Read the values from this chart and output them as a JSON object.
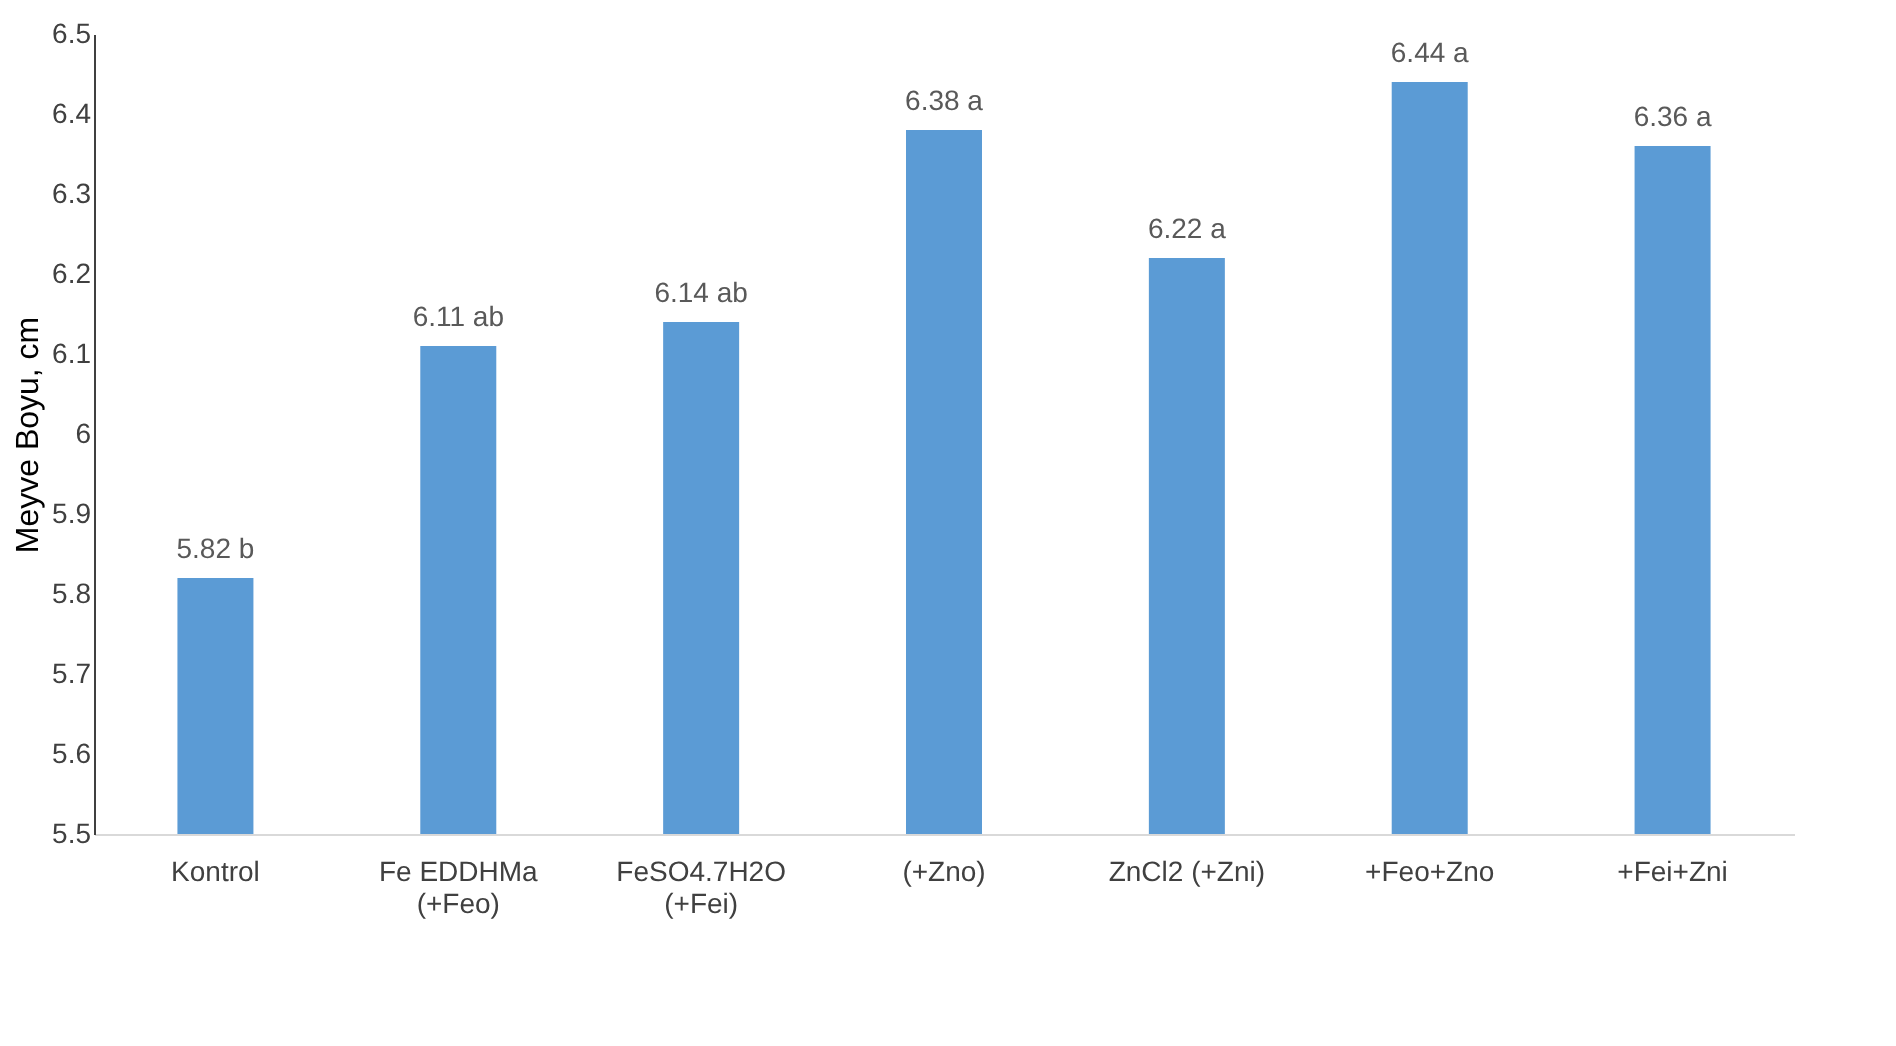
{
  "chart_data": {
    "type": "bar",
    "ylabel": "Meyve Boyu, cm",
    "categories": [
      "Kontrol",
      "Fe EDDHMa\n(+Feo)",
      "FeSO4.7H2O\n(+Fei)",
      "(+Zno)",
      "ZnCl2 (+Zni)",
      "+Feo+Zno",
      "+Fei+Zni"
    ],
    "values": [
      5.82,
      6.11,
      6.14,
      6.38,
      6.22,
      6.44,
      6.36
    ],
    "value_labels": [
      "5.82 b",
      "6.11 ab",
      "6.14 ab",
      "6.38 a",
      "6.22 a",
      "6.44 a",
      "6.36 a"
    ],
    "color": "#5b9bd5",
    "ylim": [
      5.5,
      6.5
    ],
    "yticks": [
      5.5,
      5.6,
      5.7,
      5.8,
      5.9,
      6,
      6.1,
      6.2,
      6.3,
      6.4,
      6.5
    ],
    "grid": false
  }
}
